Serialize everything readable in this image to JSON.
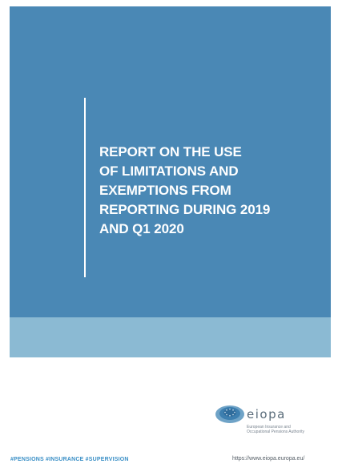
{
  "cover": {
    "title_lines": [
      "REPORT ON THE USE",
      "OF LIMITATIONS AND",
      "EXEMPTIONS FROM",
      "REPORTING DURING 2019",
      "AND Q1 2020"
    ],
    "colors": {
      "primary_blue": "#4a88b5",
      "light_blue": "#8bbad3",
      "hashtag_blue": "#3a8fc6"
    }
  },
  "logo": {
    "wordmark": "eiopa",
    "subtitle_lines": [
      "European Insurance and",
      "Occupational Pensions Authority"
    ],
    "icon": "eiopa-logo-icon"
  },
  "footer": {
    "hashtags": "#PENSIONS #INSURANCE #SUPERVISION",
    "url": "https://www.eiopa.europa.eu/"
  }
}
